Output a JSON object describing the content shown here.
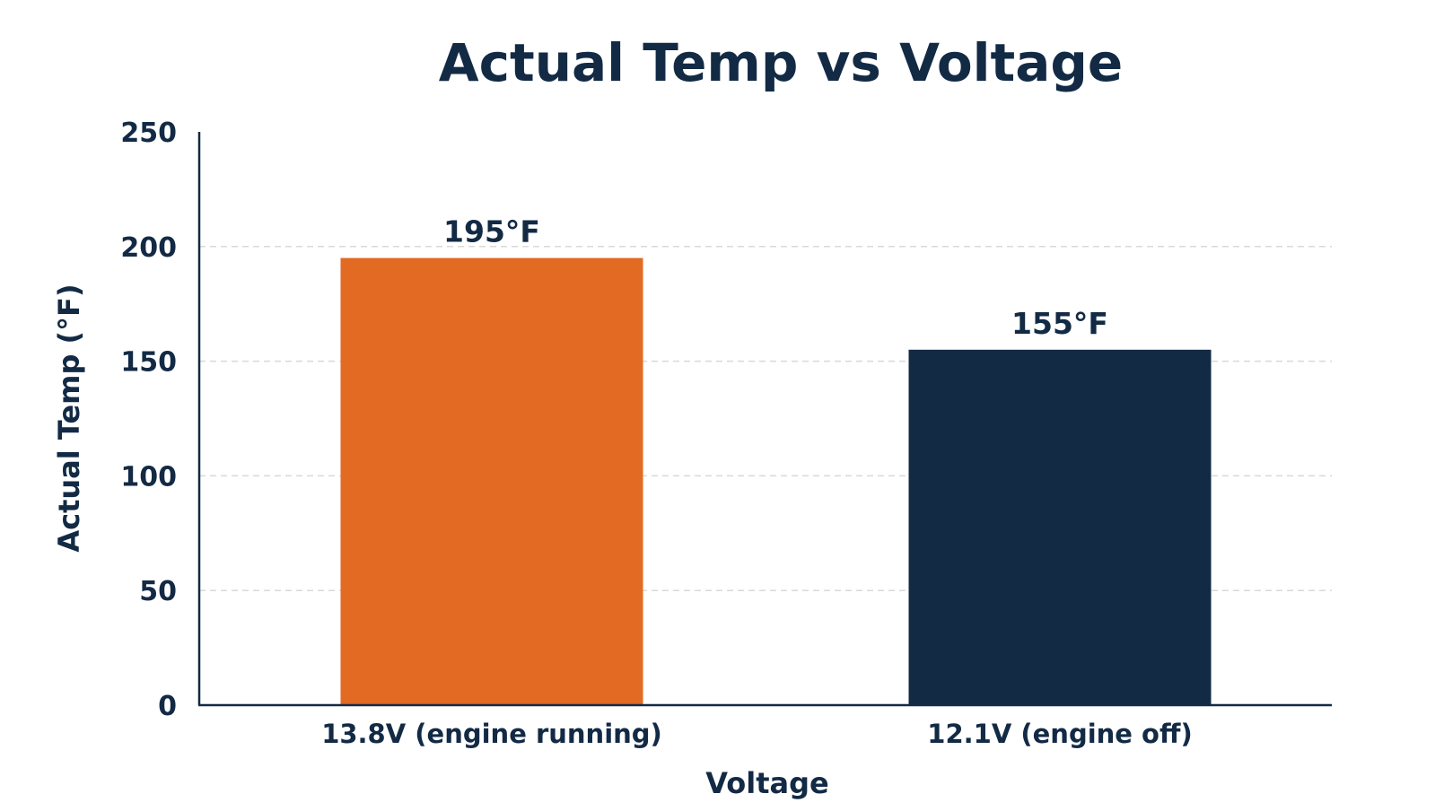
{
  "chart_data": {
    "type": "bar",
    "title": "Actual Temp vs Voltage",
    "xlabel": "Voltage",
    "ylabel": "Actual Temp (°F)",
    "categories": [
      "13.8V (engine running)",
      "12.1V (engine off)"
    ],
    "values": [
      195,
      155
    ],
    "data_labels": [
      "195°F",
      "155°F"
    ],
    "bar_colors": [
      "#E26A23",
      "#132A45"
    ],
    "ylim": [
      0,
      250
    ],
    "yticks": [
      0,
      50,
      100,
      150,
      200,
      250
    ],
    "grid": true,
    "legend": "none"
  },
  "colors": {
    "text": "#132A45",
    "axis": "#132A45",
    "grid": "#D9D9D9",
    "background": "#FFFFFF"
  }
}
